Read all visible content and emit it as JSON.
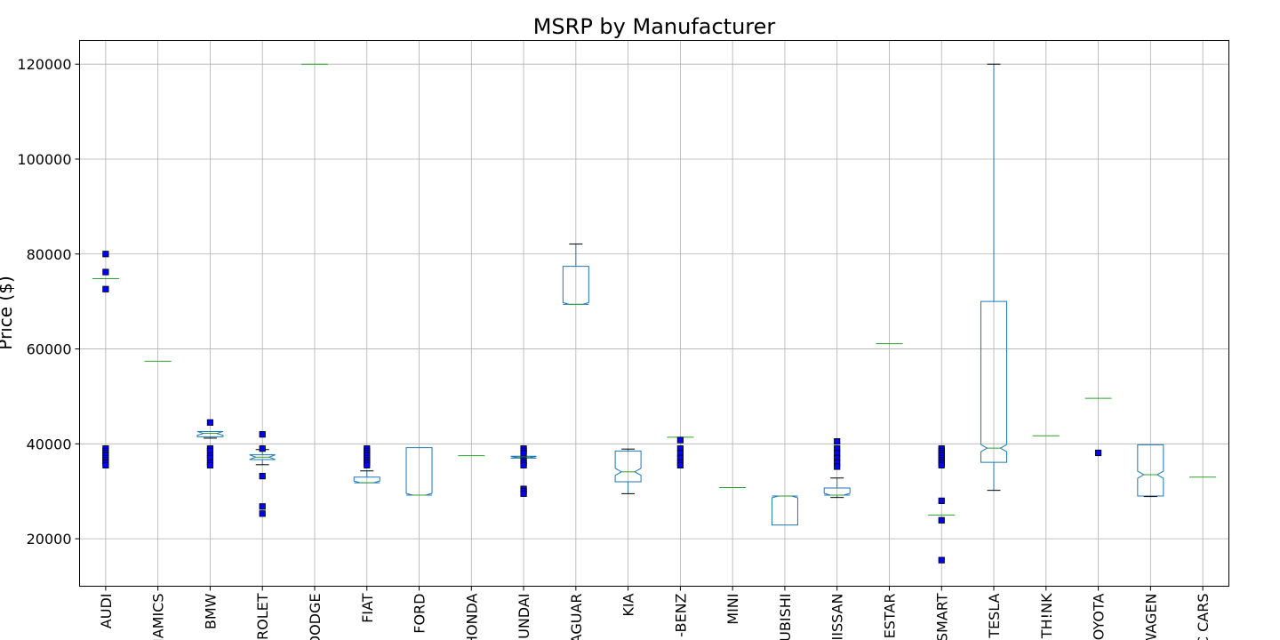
{
  "chart_data": {
    "type": "box",
    "title": "MSRP by Manufacturer",
    "xlabel": "",
    "ylabel": "Price ($)",
    "ylim": [
      10000,
      125000
    ],
    "yticks": [
      20000,
      40000,
      60000,
      80000,
      100000,
      120000
    ],
    "grid": true,
    "notched": true,
    "categories": [
      "AUDI",
      "BYD AUTO / CODA / AMP / ELECTRIC DYNAMICS",
      "BMW",
      "CHEVROLET",
      "DODGE",
      "FIAT",
      "FORD",
      "HONDA",
      "HYUNDAI",
      "JAGUAR",
      "KIA",
      "MERCEDES-BENZ",
      "MINI",
      "MITSUBISHI",
      "NISSAN",
      "PORSCHE / LUCID / RIVIAN / ESTAR",
      "SMART",
      "TESLA",
      "TH!NK",
      "TOYOTA",
      "VOLKSWAGEN",
      "ELECTRIC CARS"
    ],
    "tick_labels": [
      "AUDI",
      "NAMICS",
      "BMW",
      "ROLET",
      "DODGE",
      "FIAT",
      "FORD",
      "HONDA",
      "UNDAI",
      "AGUAR",
      "KIA",
      "-BENZ",
      "MINI",
      "UBISHI",
      "IISSAN",
      "ESTAR",
      "SMART",
      "TESLA",
      "TH!NK",
      "TOYOTA",
      "WAGEN",
      "C CARS"
    ],
    "boxes": [
      {
        "whislo": 74800,
        "q1": 74800,
        "med": 74800,
        "q3": 74800,
        "whishi": 74800,
        "fliers": [
          80000,
          76200,
          72600,
          39000,
          38500,
          38000,
          37500,
          37000,
          36500,
          36000,
          35500
        ]
      },
      {
        "whislo": 57400,
        "q1": 57400,
        "med": 57400,
        "q3": 57400,
        "whishi": 57400,
        "fliers": []
      },
      {
        "whislo": 41200,
        "q1": 41500,
        "med": 42200,
        "q3": 42600,
        "whishi": 42600,
        "fliers": [
          44500,
          39000,
          38500,
          37500,
          37000,
          36000,
          35500
        ]
      },
      {
        "whislo": 35600,
        "q1": 36700,
        "med": 37200,
        "q3": 37700,
        "whishi": 38800,
        "fliers": [
          42000,
          39000,
          33200,
          26800,
          25300
        ]
      },
      {
        "whislo": 120000,
        "q1": 120000,
        "med": 120000,
        "q3": 120000,
        "whishi": 120000,
        "fliers": []
      },
      {
        "whislo": 31800,
        "q1": 31800,
        "med": 31800,
        "q3": 33000,
        "whishi": 34300,
        "fliers": [
          39000,
          38500,
          38000,
          37500,
          37000,
          36500,
          36000,
          35500
        ]
      },
      {
        "whislo": 29200,
        "q1": 29200,
        "med": 29200,
        "q3": 39200,
        "whishi": 39200,
        "fliers": []
      },
      {
        "whislo": 37500,
        "q1": 37500,
        "med": 37500,
        "q3": 37500,
        "whishi": 37500,
        "fliers": []
      },
      {
        "whislo": 37000,
        "q1": 37000,
        "med": 37200,
        "q3": 37400,
        "whishi": 37400,
        "fliers": [
          39000,
          38500,
          38000,
          36500,
          36000,
          35500,
          30500,
          30000,
          29500
        ]
      },
      {
        "whislo": 69400,
        "q1": 69400,
        "med": 69400,
        "q3": 77400,
        "whishi": 82100,
        "fliers": []
      },
      {
        "whislo": 29500,
        "q1": 32000,
        "med": 34100,
        "q3": 38500,
        "whishi": 38900,
        "fliers": []
      },
      {
        "whislo": 41400,
        "q1": 41400,
        "med": 41400,
        "q3": 41400,
        "whishi": 41400,
        "fliers": [
          40800,
          39000,
          38000,
          37000,
          36000,
          35500
        ]
      },
      {
        "whislo": 30800,
        "q1": 30800,
        "med": 30800,
        "q3": 30800,
        "whishi": 30800,
        "fliers": []
      },
      {
        "whislo": 22900,
        "q1": 22900,
        "med": 29000,
        "q3": 29000,
        "whishi": 29000,
        "fliers": []
      },
      {
        "whislo": 28700,
        "q1": 29200,
        "med": 29200,
        "q3": 30700,
        "whishi": 32800,
        "fliers": [
          40500,
          39000,
          38000,
          37000,
          36000,
          35200
        ]
      },
      {
        "whislo": 61100,
        "q1": 61100,
        "med": 61100,
        "q3": 61100,
        "whishi": 61100,
        "fliers": []
      },
      {
        "whislo": 25000,
        "q1": 25000,
        "med": 25000,
        "q3": 25000,
        "whishi": 25000,
        "fliers": [
          39000,
          38500,
          38000,
          37500,
          37000,
          36500,
          36000,
          35500,
          28000,
          23900,
          15500
        ]
      },
      {
        "whislo": 30200,
        "q1": 36100,
        "med": 39100,
        "q3": 70000,
        "whishi": 120000,
        "fliers": []
      },
      {
        "whislo": 41700,
        "q1": 41700,
        "med": 41700,
        "q3": 41700,
        "whishi": 41700,
        "fliers": []
      },
      {
        "whislo": 49600,
        "q1": 49600,
        "med": 49600,
        "q3": 49600,
        "whishi": 49600,
        "fliers": [
          38100
        ]
      },
      {
        "whislo": 28900,
        "q1": 29000,
        "med": 33500,
        "q3": 39800,
        "whishi": 39800,
        "fliers": []
      },
      {
        "whislo": 33000,
        "q1": 33000,
        "med": 33000,
        "q3": 33000,
        "whishi": 33000,
        "fliers": []
      }
    ],
    "colors": {
      "box": "#1f77b4",
      "median": "#2ca02c",
      "whisker": "#1f77b4",
      "cap": "#000000",
      "flier_fill": "#0000ff",
      "flier_edge": "#000000",
      "grid": "#b0b0b0",
      "axis": "#000000"
    }
  }
}
